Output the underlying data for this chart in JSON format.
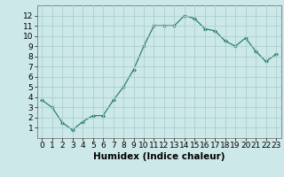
{
  "x": [
    0,
    1,
    2,
    3,
    4,
    5,
    6,
    7,
    8,
    9,
    10,
    11,
    12,
    13,
    14,
    15,
    16,
    17,
    18,
    19,
    20,
    21,
    22,
    23
  ],
  "y": [
    3.7,
    3.0,
    1.5,
    0.8,
    1.6,
    2.2,
    2.2,
    3.7,
    5.0,
    6.7,
    9.0,
    11.0,
    11.0,
    11.0,
    12.0,
    11.7,
    10.7,
    10.5,
    9.5,
    9.0,
    9.8,
    8.5,
    7.5,
    8.2
  ],
  "line_color": "#2e7d6e",
  "marker": "D",
  "marker_size": 2,
  "bg_color": "#cce8e8",
  "grid_color": "#aad0d0",
  "xlabel": "Humidex (Indice chaleur)",
  "xlim": [
    -0.5,
    23.5
  ],
  "ylim": [
    0,
    13
  ],
  "yticks": [
    1,
    2,
    3,
    4,
    5,
    6,
    7,
    8,
    9,
    10,
    11,
    12
  ],
  "xticks": [
    0,
    1,
    2,
    3,
    4,
    5,
    6,
    7,
    8,
    9,
    10,
    11,
    12,
    13,
    14,
    15,
    16,
    17,
    18,
    19,
    20,
    21,
    22,
    23
  ],
  "tick_font_size": 6.5,
  "label_font_size": 7.5
}
